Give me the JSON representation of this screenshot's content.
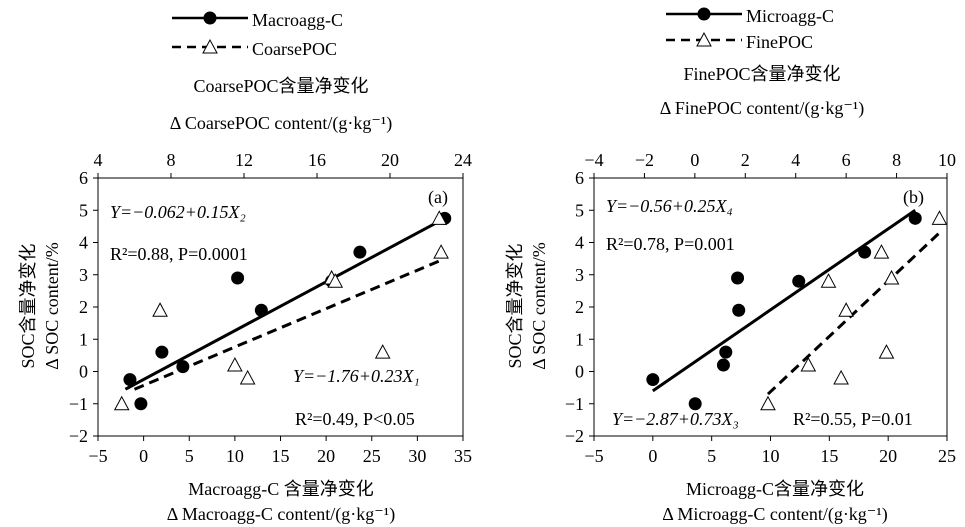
{
  "chart_data": [
    {
      "type": "scatter",
      "panel_label": "(a)",
      "legend": {
        "solid_label": "Macroagg-C",
        "dashed_label": "CoarsePOC"
      },
      "top_axis_label_zh": "CoarsePOC含量净变化",
      "top_axis_label_en": "Δ CoarsePOC content/(g·kg⁻¹)",
      "bottom_axis_label_zh": "Macroagg-C 含量净变化",
      "bottom_axis_label_en": "Δ Macroagg-C content/(g·kg⁻¹)",
      "ylabel_zh": "SOC含量净变化",
      "ylabel_en": "Δ SOC content/%",
      "x_bottom_range": [
        -5,
        35
      ],
      "x_bottom_ticks": [
        "−5",
        "0",
        "5",
        "10",
        "15",
        "20",
        "25",
        "30",
        "35"
      ],
      "x_top_range": [
        4,
        24
      ],
      "x_top_ticks": [
        "4",
        "8",
        "12",
        "16",
        "20",
        "24"
      ],
      "y_range": [
        -2,
        6
      ],
      "y_ticks": [
        "−2",
        "−1",
        "0",
        "1",
        "2",
        "3",
        "4",
        "5",
        "6"
      ],
      "series": [
        {
          "name": "Macroagg-C",
          "axis": "bottom",
          "marker": "filled-circle",
          "points": [
            [
              -1.5,
              -0.25
            ],
            [
              -0.3,
              -1.0
            ],
            [
              2.0,
              0.6
            ],
            [
              4.3,
              0.15
            ],
            [
              10.3,
              2.9
            ],
            [
              12.9,
              1.9
            ],
            [
              20.6,
              2.8
            ],
            [
              23.7,
              3.7
            ],
            [
              33.0,
              4.75
            ]
          ],
          "fit": {
            "x": [
              -2,
              33
            ],
            "y": [
              -0.55,
              4.75
            ]
          },
          "equation": "Y=−0.062+0.15X₂",
          "stats": "R²=0.88, P=0.0001"
        },
        {
          "name": "CoarsePOC",
          "axis": "top",
          "marker": "open-triangle",
          "points": [
            [
              5.3,
              -1.0
            ],
            [
              7.4,
              1.9
            ],
            [
              11.5,
              0.2
            ],
            [
              12.2,
              -0.2
            ],
            [
              16.8,
              2.9
            ],
            [
              17.0,
              2.8
            ],
            [
              19.6,
              0.6
            ],
            [
              22.7,
              4.75
            ],
            [
              22.8,
              3.7
            ]
          ],
          "fit": {
            "x": [
              6.0,
              22.8
            ],
            "y": [
              -0.55,
              3.45
            ]
          },
          "equation": "Y=−1.76+0.23X₁",
          "stats": "R²=0.49,   P<0.05"
        }
      ]
    },
    {
      "type": "scatter",
      "panel_label": "(b)",
      "legend": {
        "solid_label": "Microagg-C",
        "dashed_label": "FinePOC"
      },
      "top_axis_label_zh": "FinePOC含量净变化",
      "top_axis_label_en": "Δ FinePOC content/(g·kg⁻¹)",
      "bottom_axis_label_zh": "Microagg-C含量净变化",
      "bottom_axis_label_en": "Δ Microagg-C content/(g·kg⁻¹)",
      "ylabel_zh": "SOC含量净变化",
      "ylabel_en": "Δ SOC content/%",
      "x_bottom_range": [
        -5,
        25
      ],
      "x_bottom_ticks": [
        "−5",
        "0",
        "5",
        "10",
        "15",
        "20",
        "25"
      ],
      "x_top_range": [
        -4,
        10
      ],
      "x_top_ticks": [
        "−4",
        "−2",
        "0",
        "2",
        "4",
        "6",
        "8",
        "10"
      ],
      "y_range": [
        -2,
        6
      ],
      "y_ticks": [
        "−2",
        "−1",
        "0",
        "1",
        "2",
        "3",
        "4",
        "5",
        "6"
      ],
      "series": [
        {
          "name": "Microagg-C",
          "axis": "bottom",
          "marker": "filled-circle",
          "points": [
            [
              0.0,
              -0.25
            ],
            [
              3.6,
              -1.0
            ],
            [
              6.0,
              0.2
            ],
            [
              6.2,
              0.6
            ],
            [
              7.2,
              2.9
            ],
            [
              7.3,
              1.9
            ],
            [
              12.4,
              2.8
            ],
            [
              18.0,
              3.7
            ],
            [
              22.3,
              4.75
            ]
          ],
          "fit": {
            "x": [
              0.0,
              22.3
            ],
            "y": [
              -0.6,
              5.0
            ]
          },
          "equation": "Y=−2.87+0.73X₃",
          "stats": "R²=0.55, P=0.01"
        },
        {
          "name": "FinePOC",
          "axis": "top",
          "marker": "open-triangle",
          "points": [
            [
              2.9,
              -1.0
            ],
            [
              4.5,
              0.2
            ],
            [
              5.3,
              2.8
            ],
            [
              5.8,
              -0.2
            ],
            [
              6.0,
              1.9
            ],
            [
              7.4,
              3.7
            ],
            [
              7.6,
              0.6
            ],
            [
              7.8,
              2.9
            ],
            [
              9.7,
              4.75
            ]
          ],
          "fit": {
            "x": [
              2.9,
              9.7
            ],
            "y": [
              -0.7,
              4.3
            ]
          },
          "equation": "Y=−0.56+0.25X₄",
          "stats": "R²=0.78, P=0.001"
        }
      ]
    }
  ]
}
